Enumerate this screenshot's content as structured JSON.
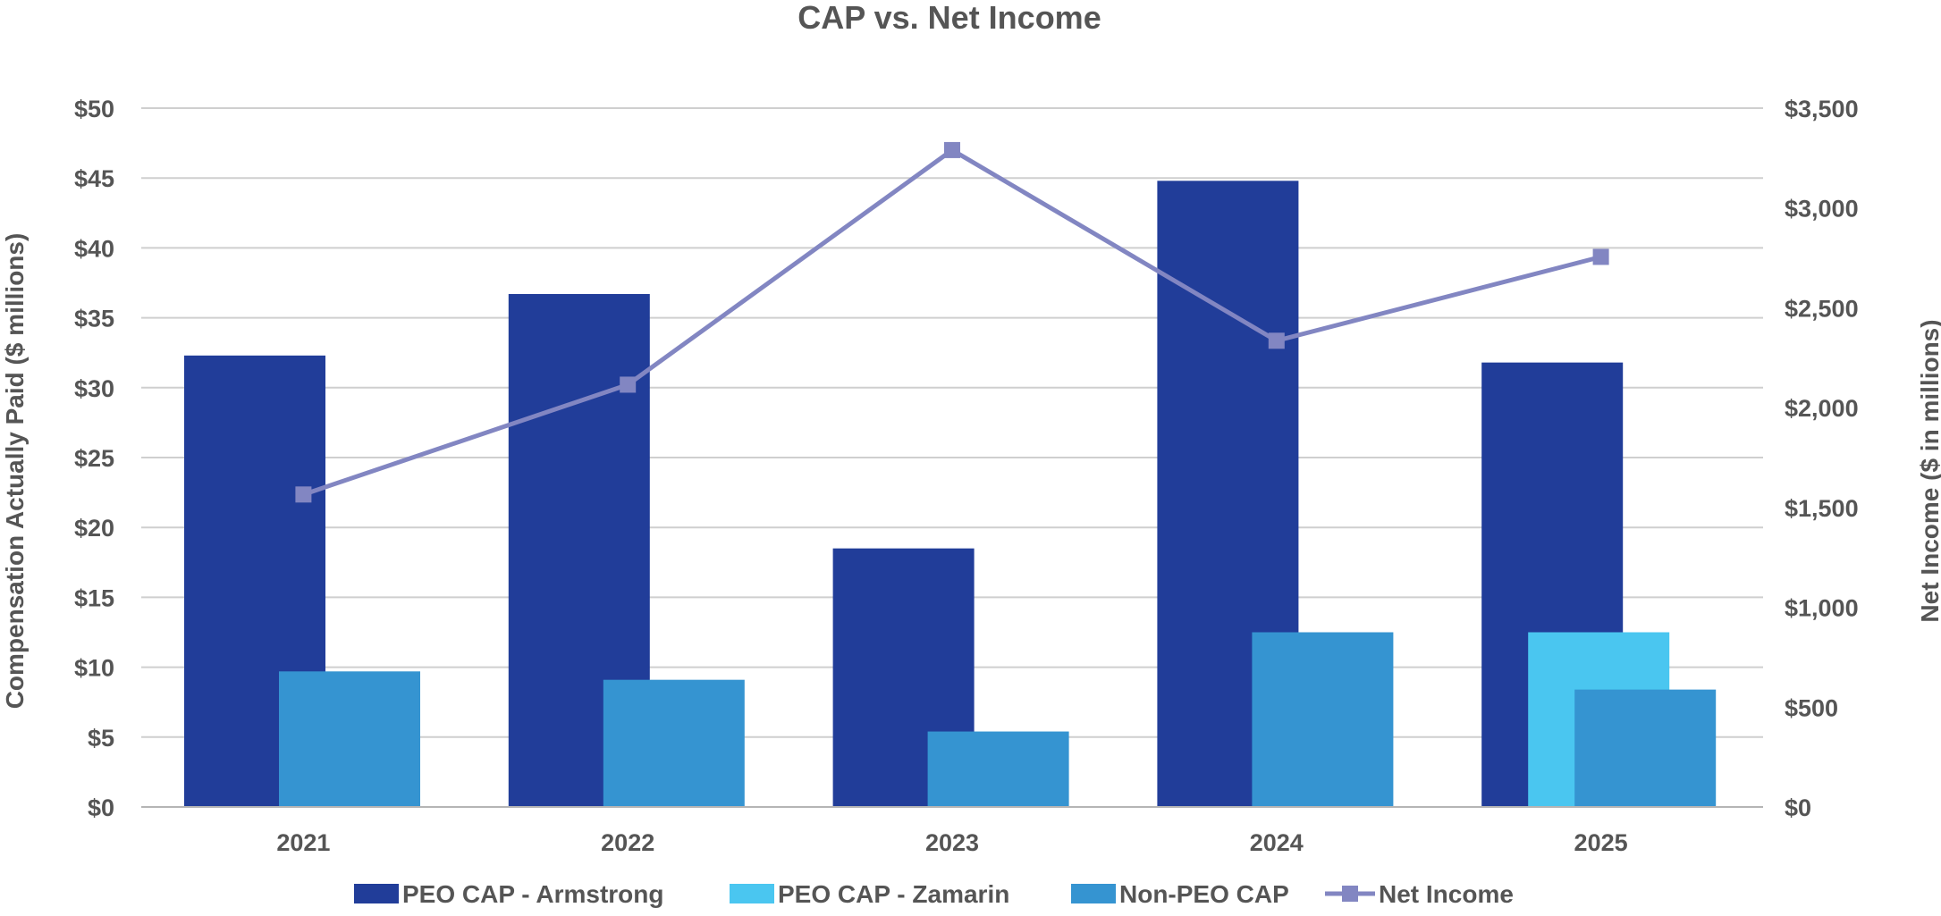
{
  "chart_data": {
    "type": "bar",
    "title": "CAP vs. Net Income",
    "categories": [
      "2021",
      "2022",
      "2023",
      "2024",
      "2025"
    ],
    "ylabel": "Compensation Actually Paid ($ millions)",
    "y2label": "Net Income ($ in millions)",
    "ylim": [
      0,
      50
    ],
    "y2lim": [
      0,
      3500
    ],
    "yticks": [
      0,
      5,
      10,
      15,
      20,
      25,
      30,
      35,
      40,
      45,
      50
    ],
    "ytick_labels": [
      "$0",
      "$5",
      "$10",
      "$15",
      "$20",
      "$25",
      "$30",
      "$35",
      "$40",
      "$45",
      "$50"
    ],
    "y2ticks": [
      0,
      500,
      1000,
      1500,
      2000,
      2500,
      3000,
      3500
    ],
    "y2tick_labels": [
      "$0",
      "$500",
      "$1,000",
      "$1,500",
      "$2,000",
      "$2,500",
      "$3,000",
      "$3,500"
    ],
    "grid": true,
    "legend_position": "bottom",
    "series": [
      {
        "name": "PEO CAP - Armstrong",
        "type": "bar",
        "axis": "left",
        "color": "#213d99",
        "values": [
          32.3,
          36.7,
          18.5,
          44.8,
          31.8
        ]
      },
      {
        "name": "PEO CAP - Zamarin",
        "type": "bar",
        "axis": "left",
        "color": "#4ac6f0",
        "values": [
          null,
          null,
          null,
          null,
          12.5
        ]
      },
      {
        "name": "Non-PEO CAP",
        "type": "bar",
        "axis": "left",
        "color": "#3594d1",
        "values": [
          9.7,
          9.1,
          5.4,
          12.5,
          8.4
        ]
      },
      {
        "name": "Net Income",
        "type": "line",
        "axis": "right",
        "color": "#8286c2",
        "marker": "square",
        "values": [
          1565,
          2115,
          3290,
          2335,
          2755
        ]
      }
    ]
  }
}
